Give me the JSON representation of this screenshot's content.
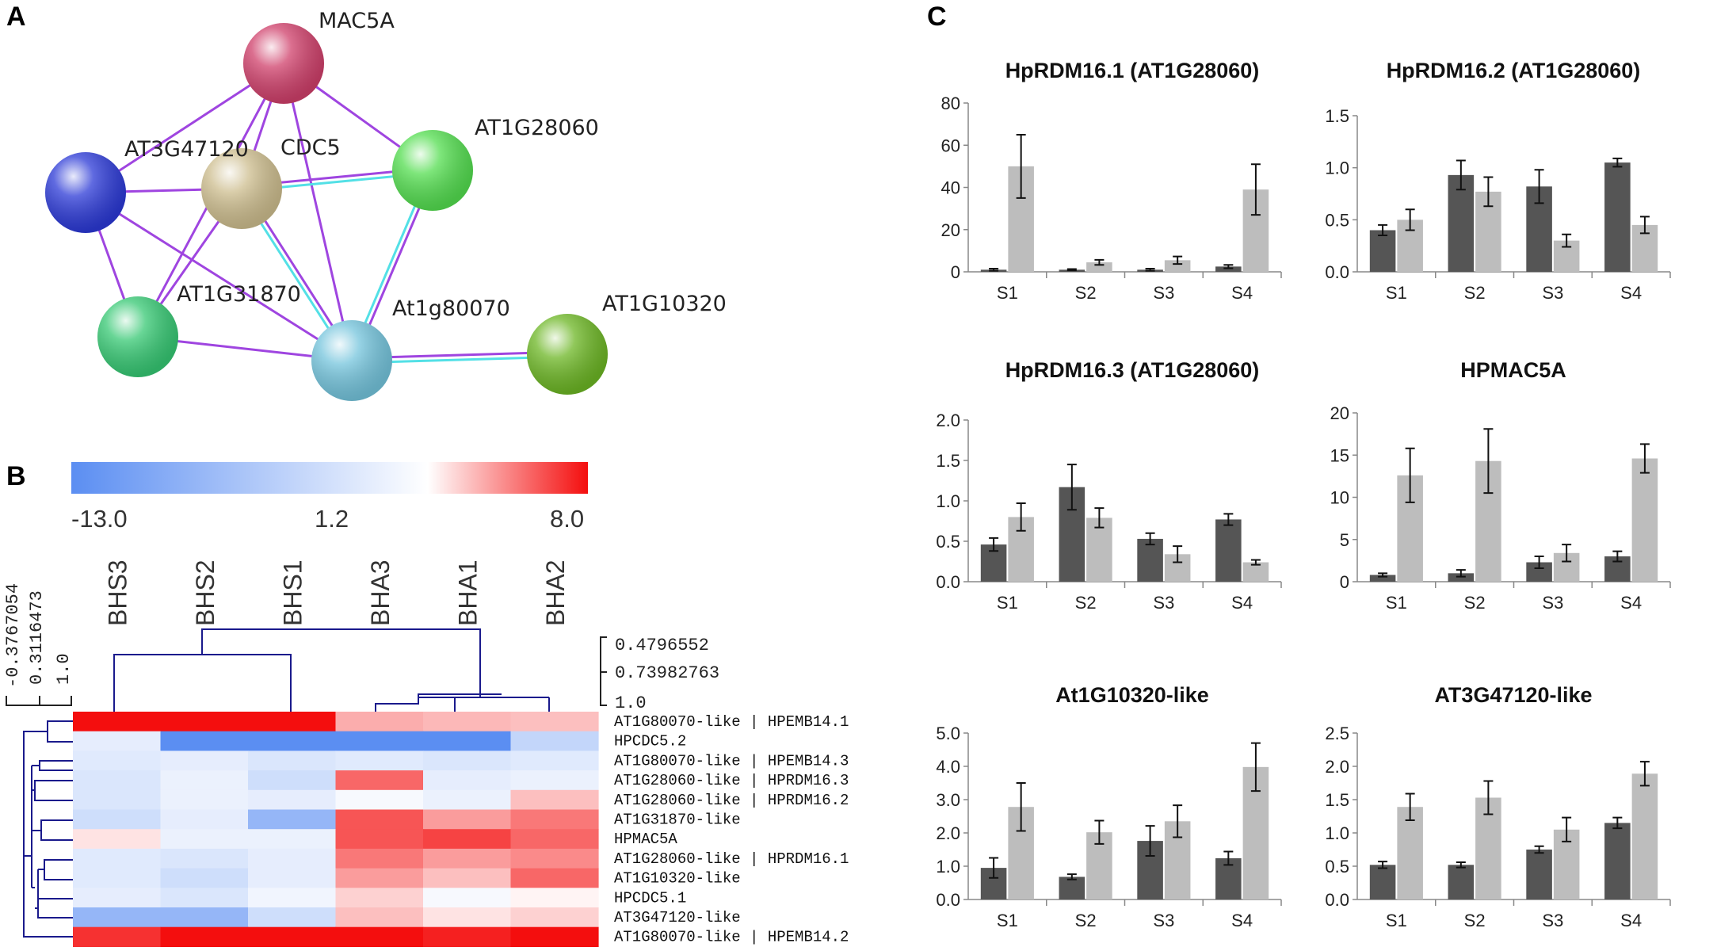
{
  "panels": {
    "a": {
      "letter": "A",
      "nodes": [
        {
          "id": "MAC5A",
          "label": "MAC5A",
          "color": "#cf3f6a"
        },
        {
          "id": "AT3G47120",
          "label": "AT3G47120",
          "color": "#cdbd8e"
        },
        {
          "id": "CDC5",
          "label": "CDC5",
          "color": "#2b39d6"
        },
        {
          "id": "AT1G28060",
          "label": "AT1G28060",
          "color": "#53dd4f"
        },
        {
          "id": "AT1G31870",
          "label": "AT1G31870",
          "color": "#36c873"
        },
        {
          "id": "At1g80070",
          "label": "At1g80070",
          "color": "#74c4dc"
        },
        {
          "id": "AT1G10320",
          "label": "AT1G10320",
          "color": "#6cb624"
        }
      ],
      "edge_colors": {
        "purple": "#9f45e0",
        "cyan": "#53e0e6"
      }
    },
    "b": {
      "letter": "B",
      "scale_ticks": [
        "-13.0",
        "1.2",
        "8.0"
      ],
      "scale_min": -13.0,
      "scale_mid": 1.2,
      "scale_max": 8.0,
      "scale_colors": {
        "low": "#5b8ef2",
        "mid": "#ffffff",
        "high": "#f40e0e"
      },
      "columns": [
        "BHS3",
        "BHS2",
        "BHS1",
        "BHA3",
        "BHA1",
        "BHA2"
      ],
      "rows": [
        "AT1G80070-like | HPEMB14.1",
        "HPCDC5.2",
        "AT1G80070-like | HPEMB14.3",
        "AT1G28060-like | HPRDM16.3",
        "AT1G28060-like | HPRDM16.2",
        "AT1G31870-like",
        "HPMAC5A",
        "AT1G28060-like | HPRDM16.1",
        "AT1G10320-like",
        "HPCDC5.1",
        "AT3G47120-like",
        "AT1G80070-like | HPEMB14.2"
      ],
      "values": [
        [
          8.0,
          8.0,
          8.0,
          3.5,
          3.2,
          3.0
        ],
        [
          -1.0,
          -13.0,
          -13.0,
          -13.0,
          -13.0,
          -4.0
        ],
        [
          -1.5,
          -1.0,
          -2.0,
          -1.5,
          -2.0,
          -1.5
        ],
        [
          -2.0,
          -0.5,
          -3.0,
          5.5,
          -1.0,
          -0.5
        ],
        [
          -2.0,
          -0.5,
          -1.0,
          0.5,
          -0.5,
          3.0
        ],
        [
          -3.0,
          -1.0,
          -8.0,
          6.0,
          4.0,
          5.0
        ],
        [
          2.0,
          -0.5,
          -0.5,
          6.0,
          6.5,
          5.5
        ],
        [
          -1.5,
          -2.0,
          -1.0,
          5.0,
          4.0,
          4.5
        ],
        [
          -1.5,
          -3.0,
          -1.0,
          4.0,
          3.0,
          5.5
        ],
        [
          -1.0,
          -2.0,
          0.0,
          2.5,
          0.5,
          1.5
        ],
        [
          -8.0,
          -8.0,
          -3.0,
          3.0,
          2.0,
          2.5
        ],
        [
          7.0,
          8.0,
          8.0,
          8.0,
          7.5,
          8.0
        ]
      ],
      "col_dendrogram_ticks": [
        "0.4796552",
        "0.73982763",
        "1.0"
      ],
      "row_dendrogram_ticks": [
        "-0.3767054",
        "0.3116473",
        "1.0"
      ],
      "dendrogram_color": "#1a1a8c"
    },
    "c": {
      "letter": "C",
      "colors": {
        "dark": "#555555",
        "light": "#bdbdbd"
      },
      "chart_data": [
        {
          "type": "bar",
          "title": "HpRDM16.1 (AT1G28060)",
          "categories": [
            "S1",
            "S2",
            "S3",
            "S4"
          ],
          "yticks": [
            "0",
            "20",
            "40",
            "60",
            "80"
          ],
          "ylim": [
            0,
            80
          ],
          "series": [
            {
              "values": [
                1,
                1,
                1,
                2.5
              ],
              "errors": [
                0.5,
                0.3,
                0.5,
                0.8
              ]
            },
            {
              "values": [
                50,
                4.5,
                5.5,
                39
              ],
              "errors": [
                15,
                1.2,
                1.8,
                12
              ]
            }
          ]
        },
        {
          "type": "bar",
          "title": "HpRDM16.2 (AT1G28060)",
          "categories": [
            "S1",
            "S2",
            "S3",
            "S4"
          ],
          "yticks": [
            "0.0",
            "0.5",
            "1.0",
            "1.5"
          ],
          "ylim": [
            0,
            1.5
          ],
          "series": [
            {
              "values": [
                0.4,
                0.93,
                0.82,
                1.05
              ],
              "errors": [
                0.05,
                0.14,
                0.16,
                0.04
              ]
            },
            {
              "values": [
                0.5,
                0.77,
                0.3,
                0.45
              ],
              "errors": [
                0.1,
                0.14,
                0.06,
                0.08
              ]
            }
          ]
        },
        {
          "type": "bar",
          "title": "HpRDM16.3 (AT1G28060)",
          "categories": [
            "S1",
            "S2",
            "S3",
            "S4"
          ],
          "yticks": [
            "0.0",
            "0.5",
            "1.0",
            "1.5",
            "2.0"
          ],
          "ylim": [
            0,
            2.0
          ],
          "series": [
            {
              "values": [
                0.46,
                1.17,
                0.53,
                0.77
              ],
              "errors": [
                0.08,
                0.28,
                0.07,
                0.07
              ]
            },
            {
              "values": [
                0.8,
                0.79,
                0.34,
                0.24
              ],
              "errors": [
                0.17,
                0.12,
                0.1,
                0.03
              ]
            }
          ]
        },
        {
          "type": "bar",
          "title": "HPMAC5A",
          "categories": [
            "S1",
            "S2",
            "S3",
            "S4"
          ],
          "yticks": [
            "0",
            "5",
            "10",
            "15",
            "20"
          ],
          "ylim": [
            0,
            20
          ],
          "series": [
            {
              "values": [
                0.8,
                1.0,
                2.3,
                3.0
              ],
              "errors": [
                0.2,
                0.4,
                0.7,
                0.6
              ]
            },
            {
              "values": [
                12.6,
                14.3,
                3.4,
                14.6
              ],
              "errors": [
                3.2,
                3.8,
                1.0,
                1.7
              ]
            }
          ]
        },
        {
          "type": "bar",
          "title": "At1G10320-like",
          "categories": [
            "S1",
            "S2",
            "S3",
            "S4"
          ],
          "yticks": [
            "0.0",
            "1.0",
            "2.0",
            "3.0",
            "4.0",
            "5.0"
          ],
          "ylim": [
            0,
            5.0
          ],
          "series": [
            {
              "values": [
                0.95,
                0.68,
                1.76,
                1.24
              ],
              "errors": [
                0.3,
                0.08,
                0.45,
                0.2
              ]
            },
            {
              "values": [
                2.78,
                2.02,
                2.35,
                3.98
              ],
              "errors": [
                0.72,
                0.35,
                0.48,
                0.72
              ]
            }
          ]
        },
        {
          "type": "bar",
          "title": "AT3G47120-like",
          "categories": [
            "S1",
            "S2",
            "S3",
            "S4"
          ],
          "yticks": [
            "0.0",
            "0.5",
            "1.0",
            "1.5",
            "2.0",
            "2.5"
          ],
          "ylim": [
            0,
            2.5
          ],
          "series": [
            {
              "values": [
                0.52,
                0.52,
                0.75,
                1.15
              ],
              "errors": [
                0.05,
                0.04,
                0.05,
                0.08
              ]
            },
            {
              "values": [
                1.39,
                1.53,
                1.05,
                1.89
              ],
              "errors": [
                0.2,
                0.25,
                0.18,
                0.18
              ]
            }
          ]
        }
      ]
    }
  }
}
